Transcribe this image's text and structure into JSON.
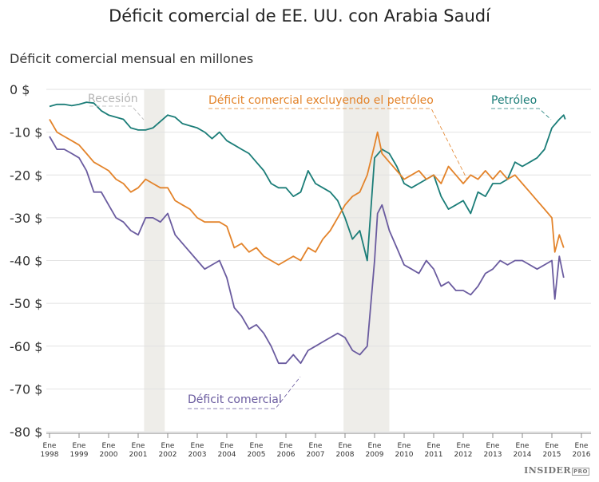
{
  "chart_data": {
    "type": "line",
    "title": "Déficit comercial de EE. UU. con Arabia Saudí",
    "subtitle": "Déficit comercial mensual en millones",
    "ylim": [
      -80,
      0
    ],
    "yticks": [
      0,
      -10,
      -20,
      -30,
      -40,
      -50,
      -60,
      -70,
      -80
    ],
    "ytick_labels": [
      "0 $",
      "-10 $",
      "-20 $",
      "-30 $",
      "-40 $",
      "-50 $",
      "-60 $",
      "-70 $",
      "-80 $"
    ],
    "xlim": [
      1998,
      2016
    ],
    "xtick_labels": [
      [
        "Ene",
        "1998"
      ],
      [
        "Ene",
        "1999"
      ],
      [
        "Ene",
        "2000"
      ],
      [
        "Ene",
        "2001"
      ],
      [
        "Ene",
        "2002"
      ],
      [
        "Ene",
        "2003"
      ],
      [
        "Ene",
        "2004"
      ],
      [
        "Ene",
        "2005"
      ],
      [
        "Ene",
        "2006"
      ],
      [
        "Ene",
        "2007"
      ],
      [
        "Ene",
        "2008"
      ],
      [
        "Ene",
        "2009"
      ],
      [
        "Ene",
        "2010"
      ],
      [
        "Ene",
        "2011"
      ],
      [
        "Ene",
        "2012"
      ],
      [
        "Ene",
        "2013"
      ],
      [
        "Ene",
        "2014"
      ],
      [
        "Ene",
        "2015"
      ],
      [
        "Ene",
        "2016"
      ]
    ],
    "grid": true,
    "recessions": [
      {
        "label": "Recesión",
        "start": 2001.2,
        "end": 2001.9
      },
      {
        "start": 2007.95,
        "end": 2009.5
      }
    ],
    "series": [
      {
        "name": "Petróleo",
        "color": "#1b7d78",
        "x": [
          1998,
          1998.25,
          1998.5,
          1998.75,
          1999,
          1999.25,
          1999.5,
          1999.75,
          2000,
          2000.25,
          2000.5,
          2000.75,
          2001,
          2001.25,
          2001.5,
          2001.75,
          2002,
          2002.25,
          2002.5,
          2002.75,
          2003,
          2003.25,
          2003.5,
          2003.75,
          2004,
          2004.25,
          2004.5,
          2004.75,
          2005,
          2005.25,
          2005.5,
          2005.75,
          2006,
          2006.25,
          2006.5,
          2006.75,
          2007,
          2007.25,
          2007.5,
          2007.75,
          2008,
          2008.25,
          2008.5,
          2008.75,
          2009,
          2009.25,
          2009.5,
          2009.75,
          2010,
          2010.25,
          2010.5,
          2010.75,
          2011,
          2011.25,
          2011.5,
          2011.75,
          2012,
          2012.25,
          2012.5,
          2012.75,
          2013,
          2013.25,
          2013.5,
          2013.75,
          2014,
          2014.25,
          2014.5,
          2014.75,
          2015,
          2015.25,
          2015.4,
          2015.45
        ],
        "values": [
          -4,
          -3.5,
          -3.5,
          -3.8,
          -3.5,
          -3,
          -3.2,
          -5,
          -6,
          -6.5,
          -7,
          -9,
          -9.5,
          -9.5,
          -9,
          -7.5,
          -6,
          -6.5,
          -8,
          -8.5,
          -9,
          -10,
          -11.5,
          -10,
          -12,
          -13,
          -14,
          -15,
          -17,
          -19,
          -22,
          -23,
          -23,
          -25,
          -24,
          -19,
          -22,
          -23,
          -24,
          -26,
          -30,
          -35,
          -33,
          -40,
          -16,
          -14,
          -15,
          -18,
          -22,
          -23,
          -22,
          -21,
          -20,
          -25,
          -28,
          -27,
          -26,
          -29,
          -24,
          -25,
          -22,
          -22,
          -21,
          -17,
          -18,
          -17,
          -16,
          -14,
          -9,
          -7,
          -6,
          -7
        ]
      },
      {
        "name": "Déficit comercial excluyendo el petróleo",
        "color": "#e3832a",
        "x": [
          1998,
          1998.25,
          1998.5,
          1998.75,
          1999,
          1999.25,
          1999.5,
          1999.75,
          2000,
          2000.25,
          2000.5,
          2000.75,
          2001,
          2001.25,
          2001.5,
          2001.75,
          2002,
          2002.25,
          2002.5,
          2002.75,
          2003,
          2003.25,
          2003.5,
          2003.75,
          2004,
          2004.25,
          2004.5,
          2004.75,
          2005,
          2005.25,
          2005.5,
          2005.75,
          2006,
          2006.25,
          2006.5,
          2006.75,
          2007,
          2007.25,
          2007.5,
          2007.75,
          2008,
          2008.25,
          2008.5,
          2008.75,
          2009,
          2009.1,
          2009.25,
          2009.5,
          2009.75,
          2010,
          2010.25,
          2010.5,
          2010.75,
          2011,
          2011.25,
          2011.5,
          2011.75,
          2012,
          2012.25,
          2012.5,
          2012.75,
          2013,
          2013.25,
          2013.5,
          2013.75,
          2014,
          2014.25,
          2014.5,
          2014.75,
          2015,
          2015.1,
          2015.25,
          2015.4
        ],
        "values": [
          -7,
          -10,
          -11,
          -12,
          -13,
          -15,
          -17,
          -18,
          -19,
          -21,
          -22,
          -24,
          -23,
          -21,
          -22,
          -23,
          -23,
          -26,
          -27,
          -28,
          -30,
          -31,
          -31,
          -31,
          -32,
          -37,
          -36,
          -38,
          -37,
          -39,
          -40,
          -41,
          -40,
          -39,
          -40,
          -37,
          -38,
          -35,
          -33,
          -30,
          -27,
          -25,
          -24,
          -20,
          -13,
          -10,
          -15,
          -17,
          -19,
          -21,
          -20,
          -19,
          -21,
          -20,
          -22,
          -18,
          -20,
          -22,
          -20,
          -21,
          -19,
          -21,
          -19,
          -21,
          -20,
          -22,
          -24,
          -26,
          -28,
          -30,
          -38,
          -34,
          -37
        ]
      },
      {
        "name": "Déficit comercial",
        "color": "#6a5b9f",
        "x": [
          1998,
          1998.25,
          1998.5,
          1998.75,
          1999,
          1999.25,
          1999.5,
          1999.75,
          2000,
          2000.25,
          2000.5,
          2000.75,
          2001,
          2001.25,
          2001.5,
          2001.75,
          2002,
          2002.25,
          2002.5,
          2002.75,
          2003,
          2003.25,
          2003.5,
          2003.75,
          2004,
          2004.25,
          2004.5,
          2004.75,
          2005,
          2005.25,
          2005.5,
          2005.75,
          2006,
          2006.25,
          2006.5,
          2006.75,
          2007,
          2007.25,
          2007.5,
          2007.75,
          2008,
          2008.25,
          2008.5,
          2008.75,
          2009,
          2009.1,
          2009.25,
          2009.5,
          2009.75,
          2010,
          2010.25,
          2010.5,
          2010.75,
          2011,
          2011.25,
          2011.5,
          2011.75,
          2012,
          2012.25,
          2012.5,
          2012.75,
          2013,
          2013.25,
          2013.5,
          2013.75,
          2014,
          2014.25,
          2014.5,
          2014.75,
          2015,
          2015.1,
          2015.25,
          2015.4
        ],
        "values": [
          -11,
          -14,
          -14,
          -15,
          -16,
          -19,
          -24,
          -24,
          -27,
          -30,
          -31,
          -33,
          -34,
          -30,
          -30,
          -31,
          -29,
          -34,
          -36,
          -38,
          -40,
          -42,
          -41,
          -40,
          -44,
          -51,
          -53,
          -56,
          -55,
          -57,
          -60,
          -64,
          -64,
          -62,
          -64,
          -61,
          -60,
          -59,
          -58,
          -57,
          -58,
          -61,
          -62,
          -60,
          -40,
          -29,
          -27,
          -33,
          -37,
          -41,
          -42,
          -43,
          -40,
          -42,
          -46,
          -45,
          -47,
          -47,
          -48,
          -46,
          -43,
          -42,
          -40,
          -41,
          -40,
          -40,
          -41,
          -42,
          -41,
          -40,
          -49,
          -39,
          -44
        ]
      }
    ]
  },
  "logo": "INSIDER PRO"
}
